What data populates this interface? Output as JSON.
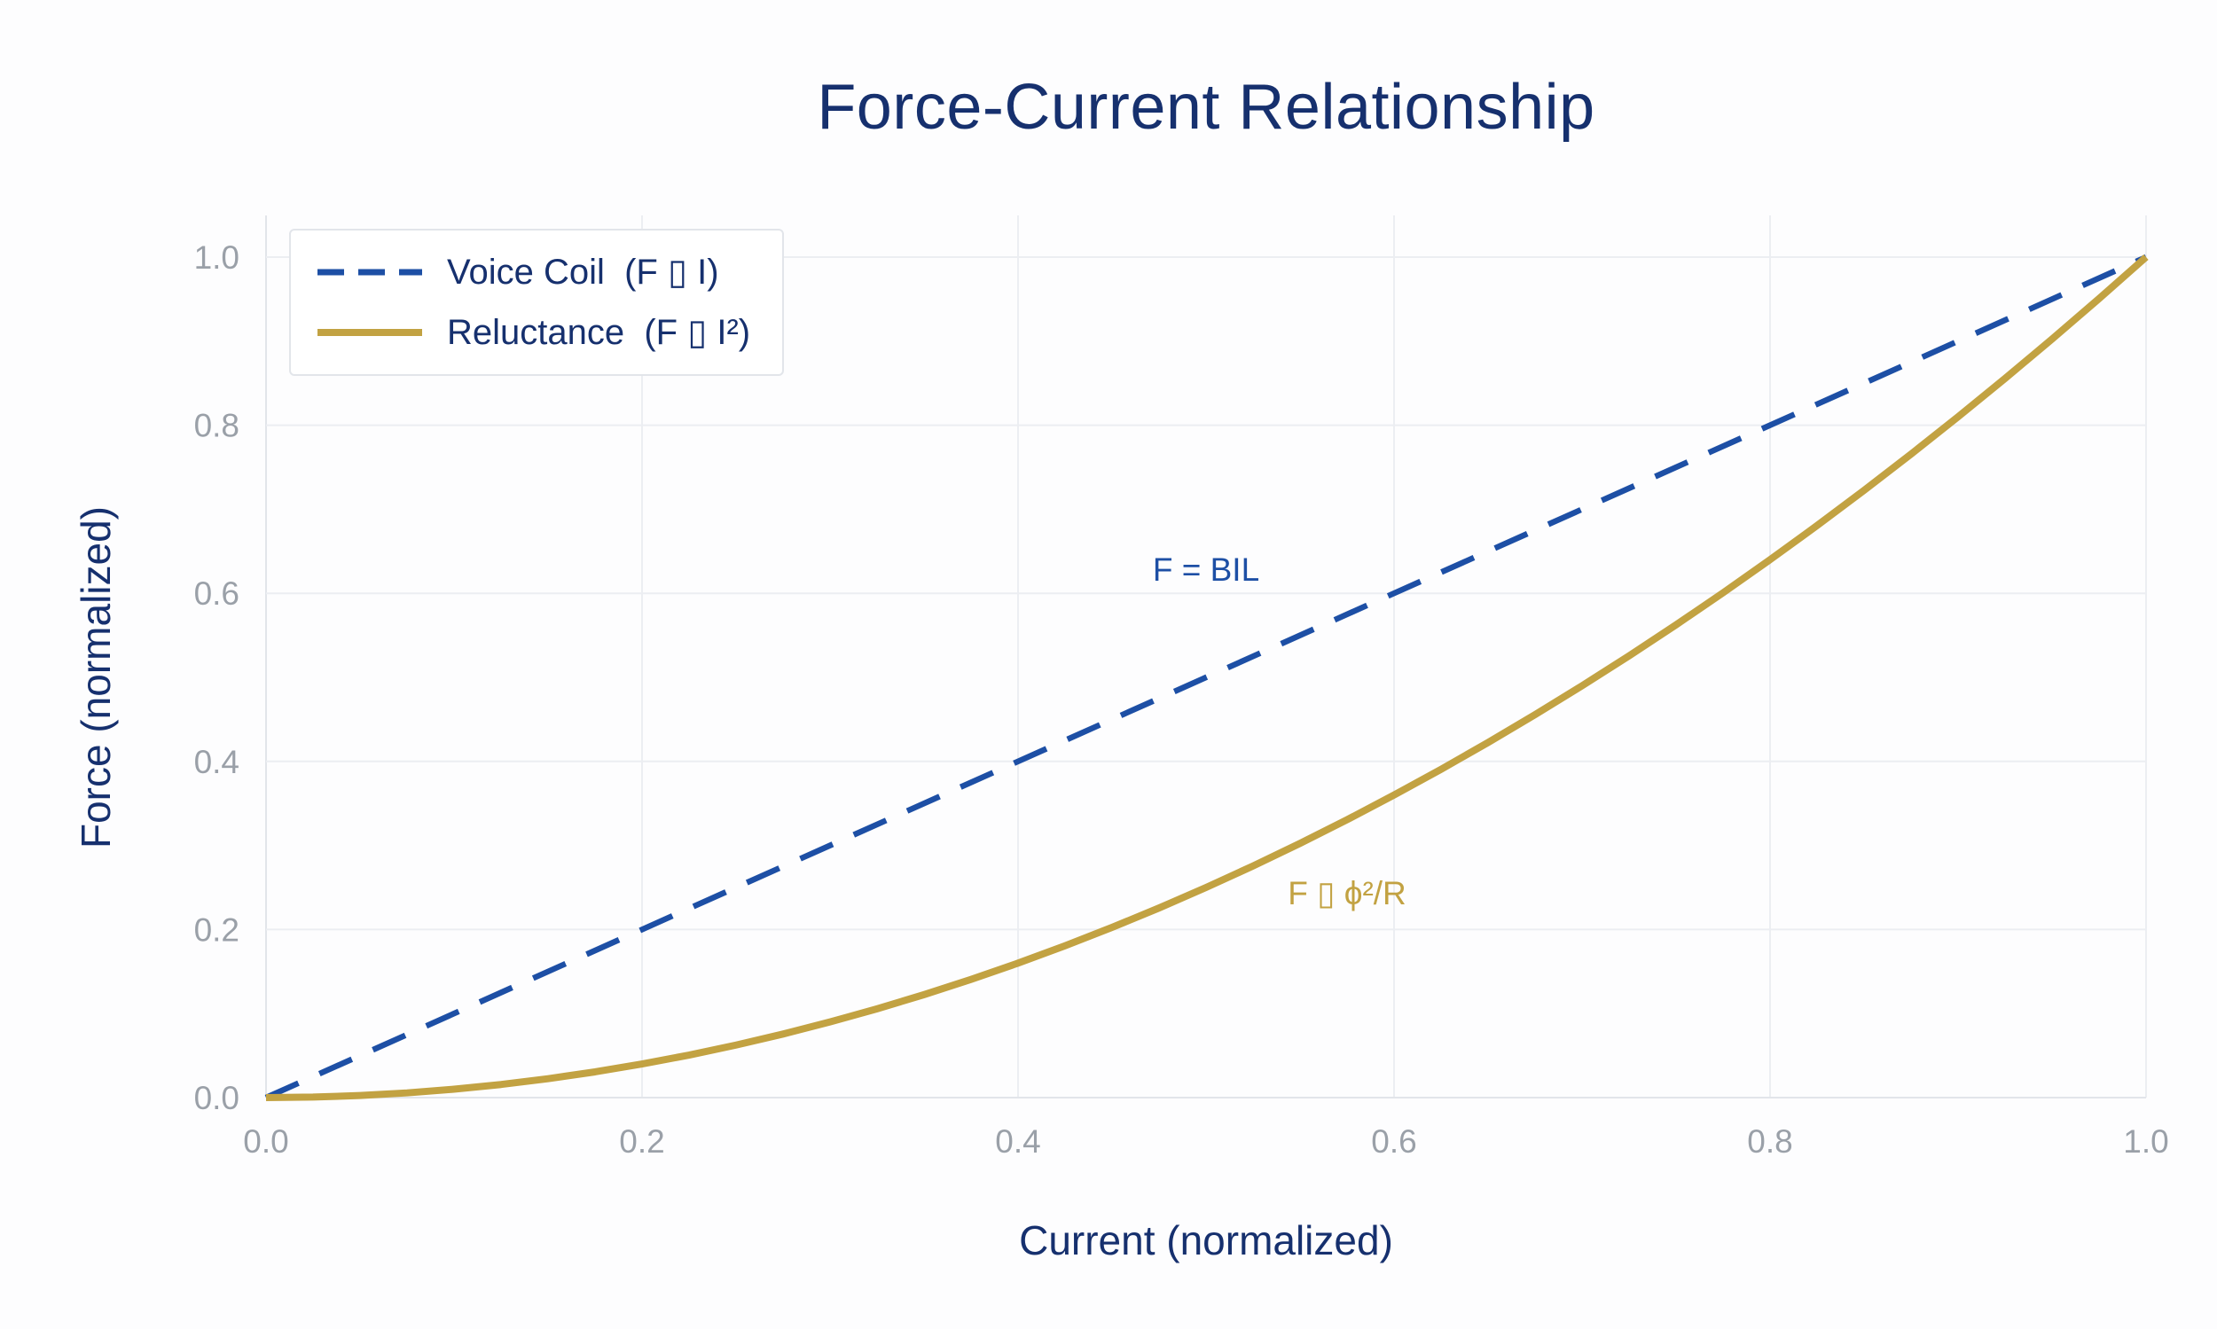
{
  "colors": {
    "navy_text": "#16306e",
    "blue_line": "#1d4fa5",
    "gold_line": "#c2a242",
    "grid": "#eceef2",
    "zero_line": "#e2e5ea",
    "tick_text": "#9aa0a8",
    "background": "#fdfdfe",
    "legend_border": "#e2e5ea"
  },
  "chart_data": {
    "type": "line",
    "title": "Force-Current Relationship",
    "xlabel": "Current (normalized)",
    "ylabel": "Force (normalized)",
    "xlim": [
      0,
      1
    ],
    "ylim": [
      0,
      1
    ],
    "xticks": [
      0,
      0.2,
      0.4,
      0.6,
      0.8,
      1.0
    ],
    "yticks": [
      0,
      0.2,
      0.4,
      0.6,
      0.8,
      1.0
    ],
    "grid": true,
    "legend_position": "top-left",
    "series": [
      {
        "name": "Voice Coil  (F ▯ I)",
        "style": "dashed",
        "color": "#1d4fa5",
        "relation": "F = I",
        "x": [
          0,
          1
        ],
        "y": [
          0,
          1
        ]
      },
      {
        "name": "Reluctance  (F ▯ I²)",
        "style": "solid",
        "color": "#c2a242",
        "relation": "F = I²",
        "x": [
          0,
          0.025,
          0.05,
          0.075,
          0.1,
          0.125,
          0.15,
          0.175,
          0.2,
          0.225,
          0.25,
          0.275,
          0.3,
          0.325,
          0.35,
          0.375,
          0.4,
          0.425,
          0.45,
          0.475,
          0.5,
          0.525,
          0.55,
          0.575,
          0.6,
          0.625,
          0.65,
          0.675,
          0.7,
          0.725,
          0.75,
          0.775,
          0.8,
          0.825,
          0.85,
          0.875,
          0.9,
          0.925,
          0.95,
          0.975,
          1
        ],
        "y": [
          0,
          0.0006,
          0.0025,
          0.0056,
          0.01,
          0.0156,
          0.0225,
          0.0306,
          0.04,
          0.0506,
          0.0625,
          0.0756,
          0.09,
          0.1056,
          0.1225,
          0.1406,
          0.16,
          0.1806,
          0.2025,
          0.2256,
          0.25,
          0.2756,
          0.3025,
          0.3306,
          0.36,
          0.3906,
          0.4225,
          0.4556,
          0.49,
          0.5256,
          0.5625,
          0.6006,
          0.64,
          0.6806,
          0.7225,
          0.7656,
          0.81,
          0.8556,
          0.9025,
          0.9506,
          1
        ]
      }
    ],
    "annotations": [
      {
        "text": "F = BIL",
        "x": 0.5,
        "y": 0.615,
        "color": "#1d4fa5"
      },
      {
        "text": "F ▯ ϕ²/R",
        "x": 0.575,
        "y": 0.23,
        "color": "#c2a242"
      }
    ]
  }
}
